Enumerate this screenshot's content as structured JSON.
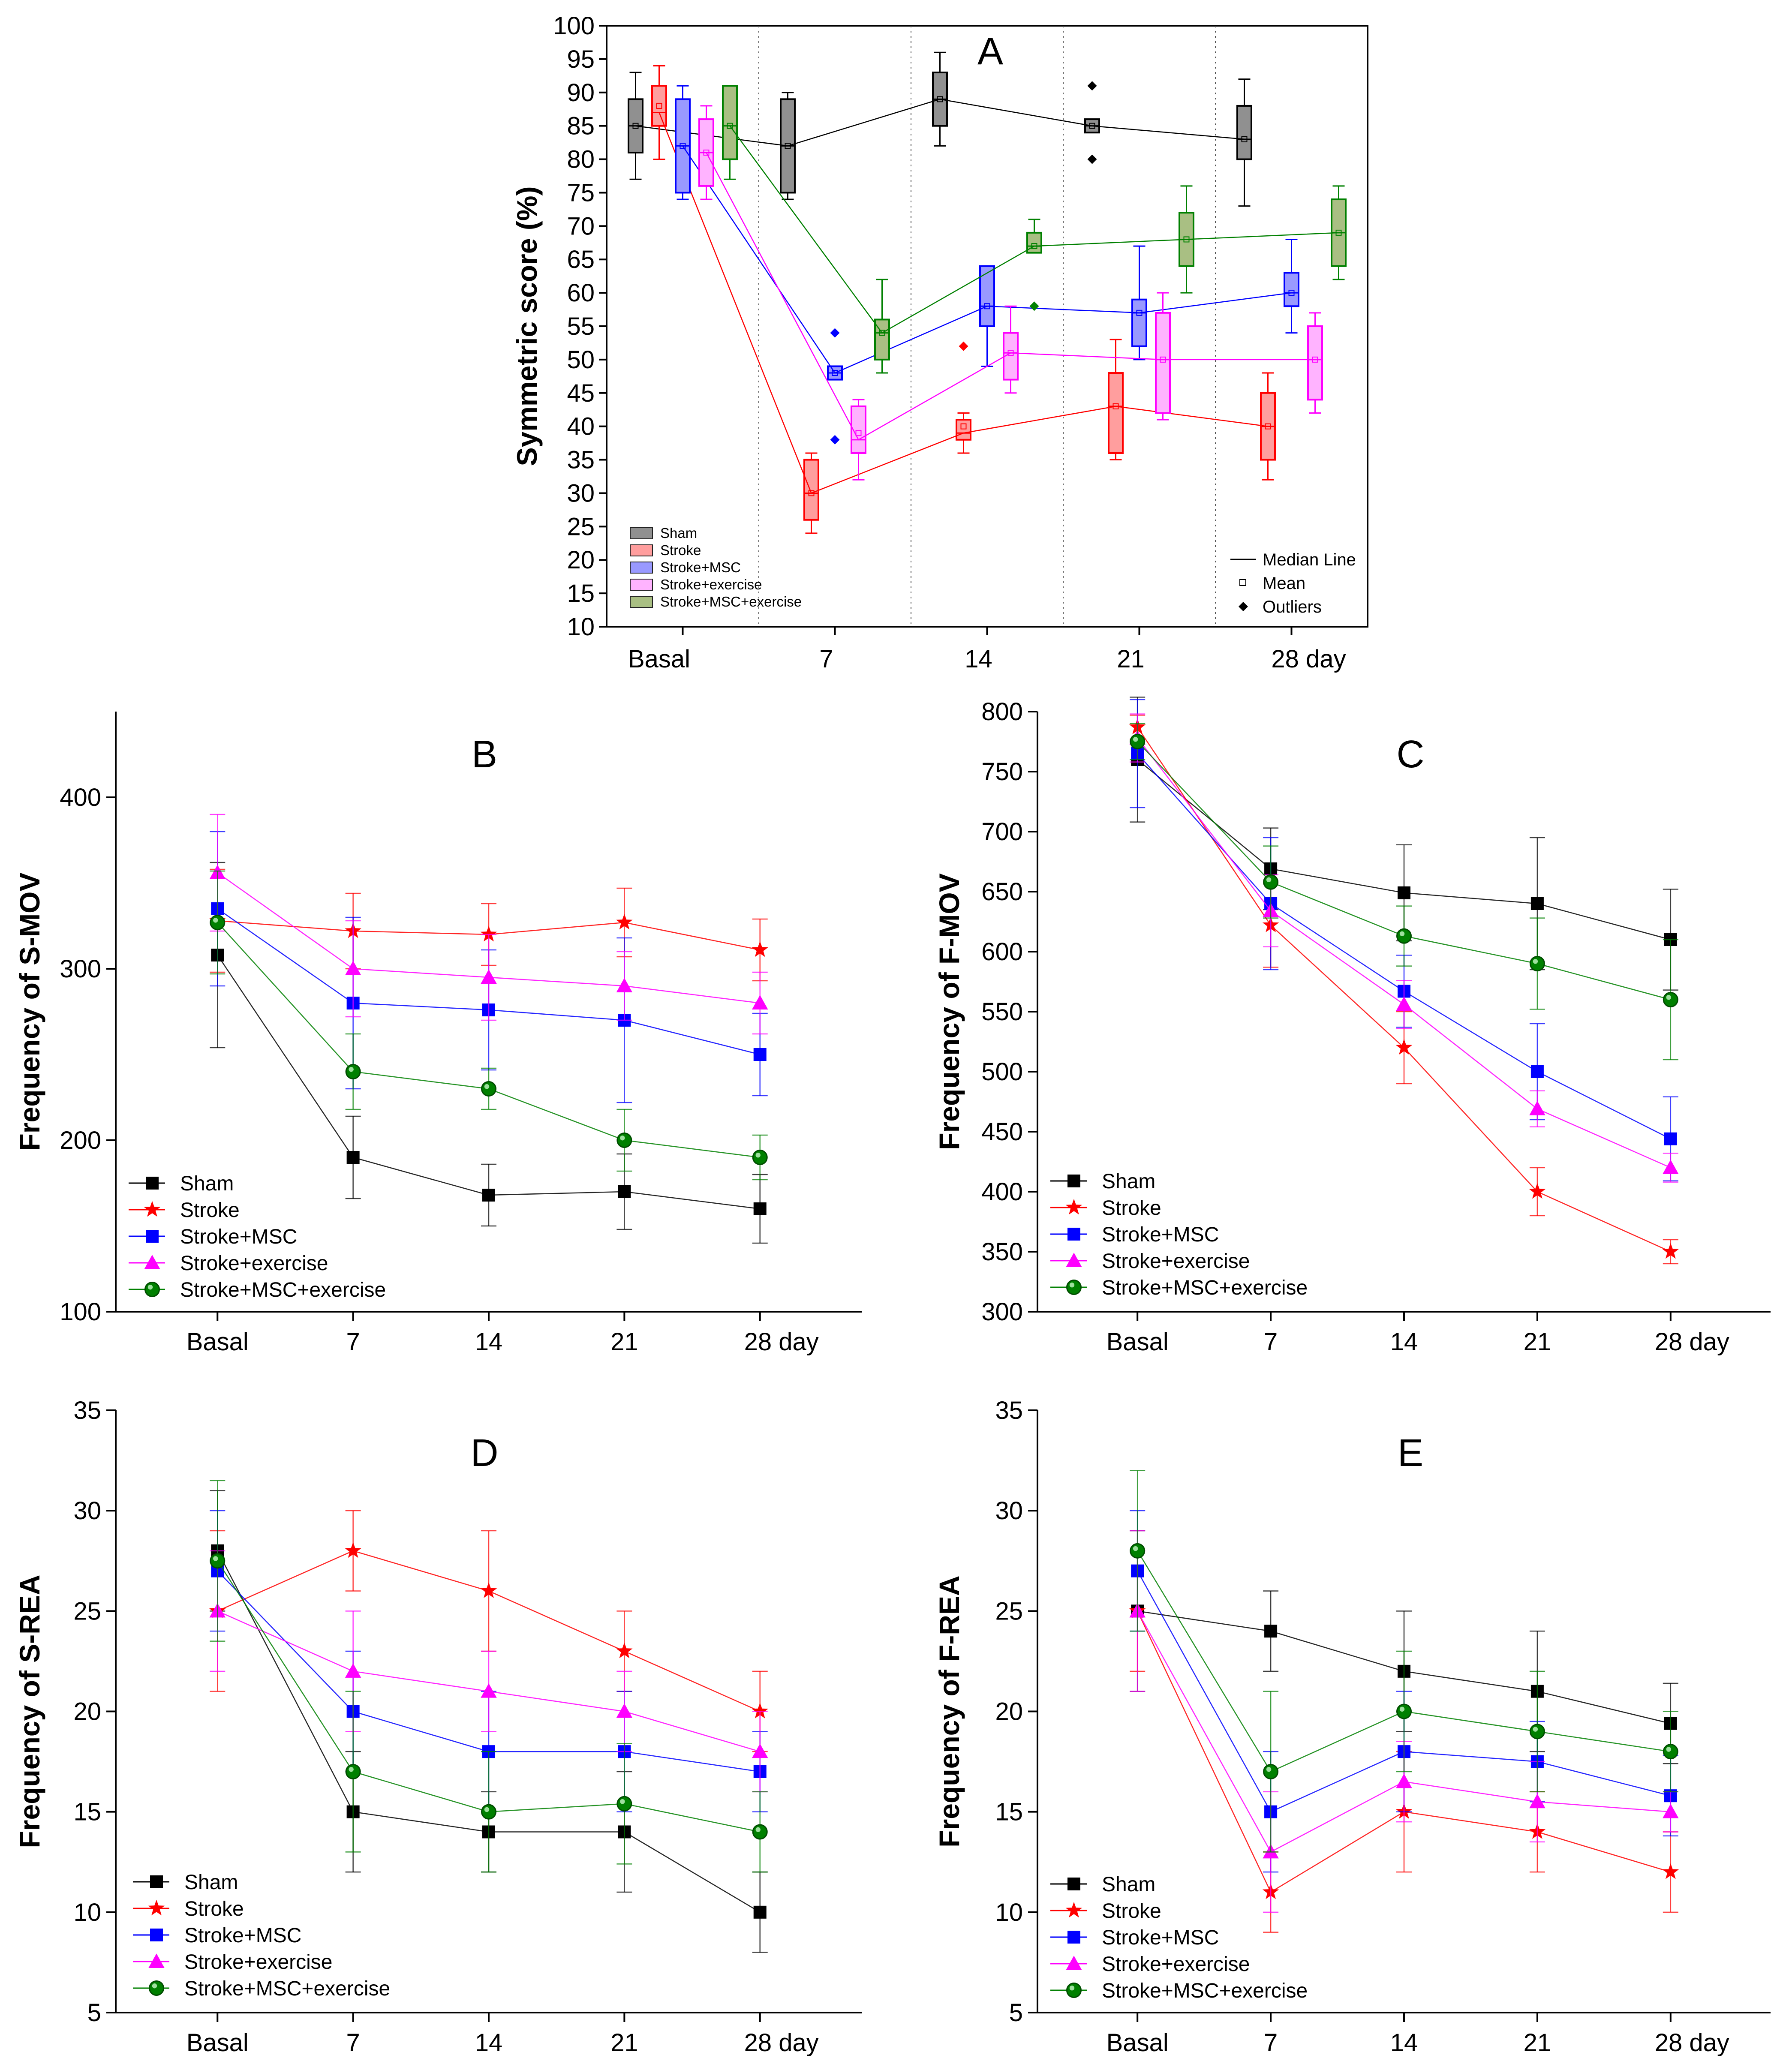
{
  "colors": {
    "sham": "#000000",
    "stroke": "#ff0000",
    "msc": "#0000ff",
    "exercise": "#ff00ff",
    "combo": "#008000"
  },
  "chart_data": [
    {
      "id": "A",
      "type": "box",
      "title": "A",
      "ylabel": "Symmetric score (%)",
      "ylim": [
        10,
        100
      ],
      "yticks": [
        10,
        15,
        20,
        25,
        30,
        35,
        40,
        45,
        50,
        55,
        60,
        65,
        70,
        75,
        80,
        85,
        90,
        95,
        100
      ],
      "categories": [
        "Basal",
        "7",
        "14",
        "21",
        "28 day"
      ],
      "legend": {
        "groups": [
          "Sham",
          "Stroke",
          "Stroke+MSC",
          "Stroke+exercise",
          "Stroke+MSC+exercise"
        ],
        "markers": [
          "Median Line",
          "Mean",
          "Outliers"
        ]
      },
      "series": [
        {
          "name": "Sham",
          "color_key": "sham",
          "fill": "#909090",
          "boxes": [
            {
              "lo": 77,
              "q1": 81,
              "med": 85,
              "q3": 89,
              "hi": 93,
              "mean": 85
            },
            {
              "lo": 74,
              "q1": 75,
              "med": 82,
              "q3": 89,
              "hi": 90,
              "mean": 82
            },
            {
              "lo": 82,
              "q1": 85,
              "med": 89,
              "q3": 93,
              "hi": 96,
              "mean": 89
            },
            {
              "lo": 84,
              "q1": 84,
              "med": 85,
              "q3": 86,
              "hi": 86,
              "mean": 85,
              "outliers": [
                91,
                80
              ]
            },
            {
              "lo": 73,
              "q1": 80,
              "med": 83,
              "q3": 88,
              "hi": 92,
              "mean": 83
            }
          ]
        },
        {
          "name": "Stroke",
          "color_key": "stroke",
          "fill": "#ff9e9e",
          "boxes": [
            {
              "lo": 80,
              "q1": 85,
              "med": 87,
              "q3": 91,
              "hi": 94,
              "mean": 88
            },
            {
              "lo": 24,
              "q1": 26,
              "med": 30,
              "q3": 35,
              "hi": 36,
              "mean": 30
            },
            {
              "lo": 36,
              "q1": 38,
              "med": 39,
              "q3": 41,
              "hi": 42,
              "mean": 40,
              "outliers": [
                52
              ]
            },
            {
              "lo": 35,
              "q1": 36,
              "med": 43,
              "q3": 48,
              "hi": 53,
              "mean": 43
            },
            {
              "lo": 32,
              "q1": 35,
              "med": 40,
              "q3": 45,
              "hi": 48,
              "mean": 40
            }
          ]
        },
        {
          "name": "Stroke+MSC",
          "color_key": "msc",
          "fill": "#9999ff",
          "boxes": [
            {
              "lo": 74,
              "q1": 75,
              "med": 82,
              "q3": 89,
              "hi": 91,
              "mean": 82
            },
            {
              "lo": 47,
              "q1": 47,
              "med": 48,
              "q3": 49,
              "hi": 49,
              "mean": 48,
              "outliers": [
                54,
                38
              ]
            },
            {
              "lo": 49,
              "q1": 55,
              "med": 58,
              "q3": 64,
              "hi": 64,
              "mean": 58
            },
            {
              "lo": 50,
              "q1": 52,
              "med": 57,
              "q3": 59,
              "hi": 67,
              "mean": 57
            },
            {
              "lo": 54,
              "q1": 58,
              "med": 60,
              "q3": 63,
              "hi": 68,
              "mean": 60
            }
          ]
        },
        {
          "name": "Stroke+exercise",
          "color_key": "exercise",
          "fill": "#ffb3ff",
          "boxes": [
            {
              "lo": 74,
              "q1": 76,
              "med": 81,
              "q3": 86,
              "hi": 88,
              "mean": 81
            },
            {
              "lo": 32,
              "q1": 36,
              "med": 38,
              "q3": 43,
              "hi": 44,
              "mean": 39
            },
            {
              "lo": 45,
              "q1": 47,
              "med": 51,
              "q3": 54,
              "hi": 58,
              "mean": 51
            },
            {
              "lo": 41,
              "q1": 42,
              "med": 50,
              "q3": 57,
              "hi": 60,
              "mean": 50
            },
            {
              "lo": 42,
              "q1": 44,
              "med": 50,
              "q3": 55,
              "hi": 57,
              "mean": 50
            }
          ]
        },
        {
          "name": "Stroke+MSC+exercise",
          "color_key": "combo",
          "fill": "#a9bf83",
          "boxes": [
            {
              "lo": 77,
              "q1": 80,
              "med": 85,
              "q3": 91,
              "hi": 91,
              "mean": 85
            },
            {
              "lo": 48,
              "q1": 50,
              "med": 54,
              "q3": 56,
              "hi": 62,
              "mean": 54
            },
            {
              "lo": 66,
              "q1": 66,
              "med": 67,
              "q3": 69,
              "hi": 71,
              "mean": 67,
              "outliers": [
                58
              ]
            },
            {
              "lo": 60,
              "q1": 64,
              "med": 68,
              "q3": 72,
              "hi": 76,
              "mean": 68
            },
            {
              "lo": 62,
              "q1": 64,
              "med": 69,
              "q3": 74,
              "hi": 76,
              "mean": 69
            }
          ]
        }
      ]
    },
    {
      "id": "B",
      "type": "line",
      "title": "B",
      "ylabel": "Frequency of S-MOV",
      "ylim": [
        100,
        450
      ],
      "yticks": [
        100,
        200,
        300,
        400
      ],
      "categories": [
        "Basal",
        "7",
        "14",
        "21",
        "28 day"
      ],
      "series": [
        {
          "name": "Sham",
          "color_key": "sham",
          "marker": "square",
          "values": [
            308,
            190,
            168,
            170,
            160
          ],
          "err": [
            54,
            24,
            18,
            22,
            20
          ]
        },
        {
          "name": "Stroke",
          "color_key": "stroke",
          "marker": "star",
          "values": [
            328,
            322,
            320,
            327,
            311
          ],
          "err": [
            30,
            22,
            18,
            20,
            18
          ]
        },
        {
          "name": "Stroke+MSC",
          "color_key": "msc",
          "marker": "square",
          "values": [
            335,
            280,
            276,
            270,
            250
          ],
          "err": [
            45,
            50,
            35,
            48,
            24
          ]
        },
        {
          "name": "Stroke+exercise",
          "color_key": "exercise",
          "marker": "triangle",
          "values": [
            356,
            300,
            295,
            290,
            280
          ],
          "err": [
            34,
            28,
            25,
            20,
            18
          ]
        },
        {
          "name": "Stroke+MSC+exercise",
          "color_key": "combo",
          "marker": "circle",
          "values": [
            327,
            240,
            230,
            200,
            190
          ],
          "err": [
            30,
            22,
            12,
            18,
            13
          ]
        }
      ]
    },
    {
      "id": "C",
      "type": "line",
      "title": "C",
      "ylabel": "Frequency of F-MOV",
      "ylim": [
        300,
        800
      ],
      "yticks": [
        300,
        350,
        400,
        450,
        500,
        550,
        600,
        650,
        700,
        750,
        800
      ],
      "categories": [
        "Basal",
        "7",
        "14",
        "21",
        "28 day"
      ],
      "series": [
        {
          "name": "Sham",
          "color_key": "sham",
          "marker": "square",
          "values": [
            760,
            669,
            649,
            640,
            610
          ],
          "err": [
            52,
            34,
            40,
            55,
            42
          ]
        },
        {
          "name": "Stroke",
          "color_key": "stroke",
          "marker": "star",
          "values": [
            787,
            622,
            520,
            400,
            350
          ],
          "err": [
            10,
            35,
            30,
            20,
            10
          ]
        },
        {
          "name": "Stroke+MSC",
          "color_key": "msc",
          "marker": "square",
          "values": [
            765,
            640,
            567,
            500,
            444
          ],
          "err": [
            45,
            55,
            30,
            40,
            35
          ]
        },
        {
          "name": "Stroke+exercise",
          "color_key": "exercise",
          "marker": "triangle",
          "values": [
            778,
            634,
            556,
            469,
            420
          ],
          "err": [
            20,
            30,
            20,
            15,
            12
          ]
        },
        {
          "name": "Stroke+MSC+exercise",
          "color_key": "combo",
          "marker": "circle",
          "values": [
            775,
            658,
            613,
            590,
            560
          ],
          "err": [
            15,
            30,
            25,
            38,
            50
          ]
        }
      ]
    },
    {
      "id": "D",
      "type": "line",
      "title": "D",
      "ylabel": "Frequency of S-REA",
      "ylim": [
        5,
        35
      ],
      "yticks": [
        5,
        10,
        15,
        20,
        25,
        30,
        35
      ],
      "categories": [
        "Basal",
        "7",
        "14",
        "21",
        "28 day"
      ],
      "series": [
        {
          "name": "Sham",
          "color_key": "sham",
          "marker": "square",
          "values": [
            28,
            15,
            14,
            14,
            10
          ],
          "err": [
            3,
            3,
            2,
            3,
            2
          ]
        },
        {
          "name": "Stroke",
          "color_key": "stroke",
          "marker": "star",
          "values": [
            25,
            28,
            26,
            23,
            20
          ],
          "err": [
            4,
            2,
            3,
            2,
            2
          ]
        },
        {
          "name": "Stroke+MSC",
          "color_key": "msc",
          "marker": "square",
          "values": [
            27,
            20,
            18,
            18,
            17
          ],
          "err": [
            3,
            3,
            3,
            3,
            2
          ]
        },
        {
          "name": "Stroke+exercise",
          "color_key": "exercise",
          "marker": "triangle",
          "values": [
            25,
            22,
            21,
            20,
            18
          ],
          "err": [
            3,
            3,
            2,
            2,
            2
          ]
        },
        {
          "name": "Stroke+MSC+exercise",
          "color_key": "combo",
          "marker": "circle",
          "values": [
            27.5,
            17,
            15,
            15.4,
            14
          ],
          "err": [
            4,
            4,
            3,
            3,
            2
          ]
        }
      ]
    },
    {
      "id": "E",
      "type": "line",
      "title": "E",
      "ylabel": "Frequency of  F-REA",
      "ylim": [
        5,
        35
      ],
      "yticks": [
        5,
        10,
        15,
        20,
        25,
        30,
        35
      ],
      "categories": [
        "Basal",
        "7",
        "14",
        "21",
        "28 day"
      ],
      "series": [
        {
          "name": "Sham",
          "color_key": "sham",
          "marker": "square",
          "values": [
            25,
            24,
            22,
            21,
            19.4
          ],
          "err": [
            4,
            2,
            3,
            3,
            2
          ]
        },
        {
          "name": "Stroke",
          "color_key": "stroke",
          "marker": "star",
          "values": [
            25,
            11,
            15,
            14,
            12
          ],
          "err": [
            3,
            2,
            3,
            2,
            2
          ]
        },
        {
          "name": "Stroke+MSC",
          "color_key": "msc",
          "marker": "square",
          "values": [
            27,
            15,
            18,
            17.5,
            15.8
          ],
          "err": [
            3,
            3,
            3,
            2,
            2
          ]
        },
        {
          "name": "Stroke+exercise",
          "color_key": "exercise",
          "marker": "triangle",
          "values": [
            25,
            13,
            16.5,
            15.5,
            15
          ],
          "err": [
            4,
            3,
            2,
            2,
            1
          ]
        },
        {
          "name": "Stroke+MSC+exercise",
          "color_key": "combo",
          "marker": "circle",
          "values": [
            28,
            17,
            20,
            19,
            18
          ],
          "err": [
            4,
            4,
            3,
            3,
            2
          ]
        }
      ]
    }
  ]
}
